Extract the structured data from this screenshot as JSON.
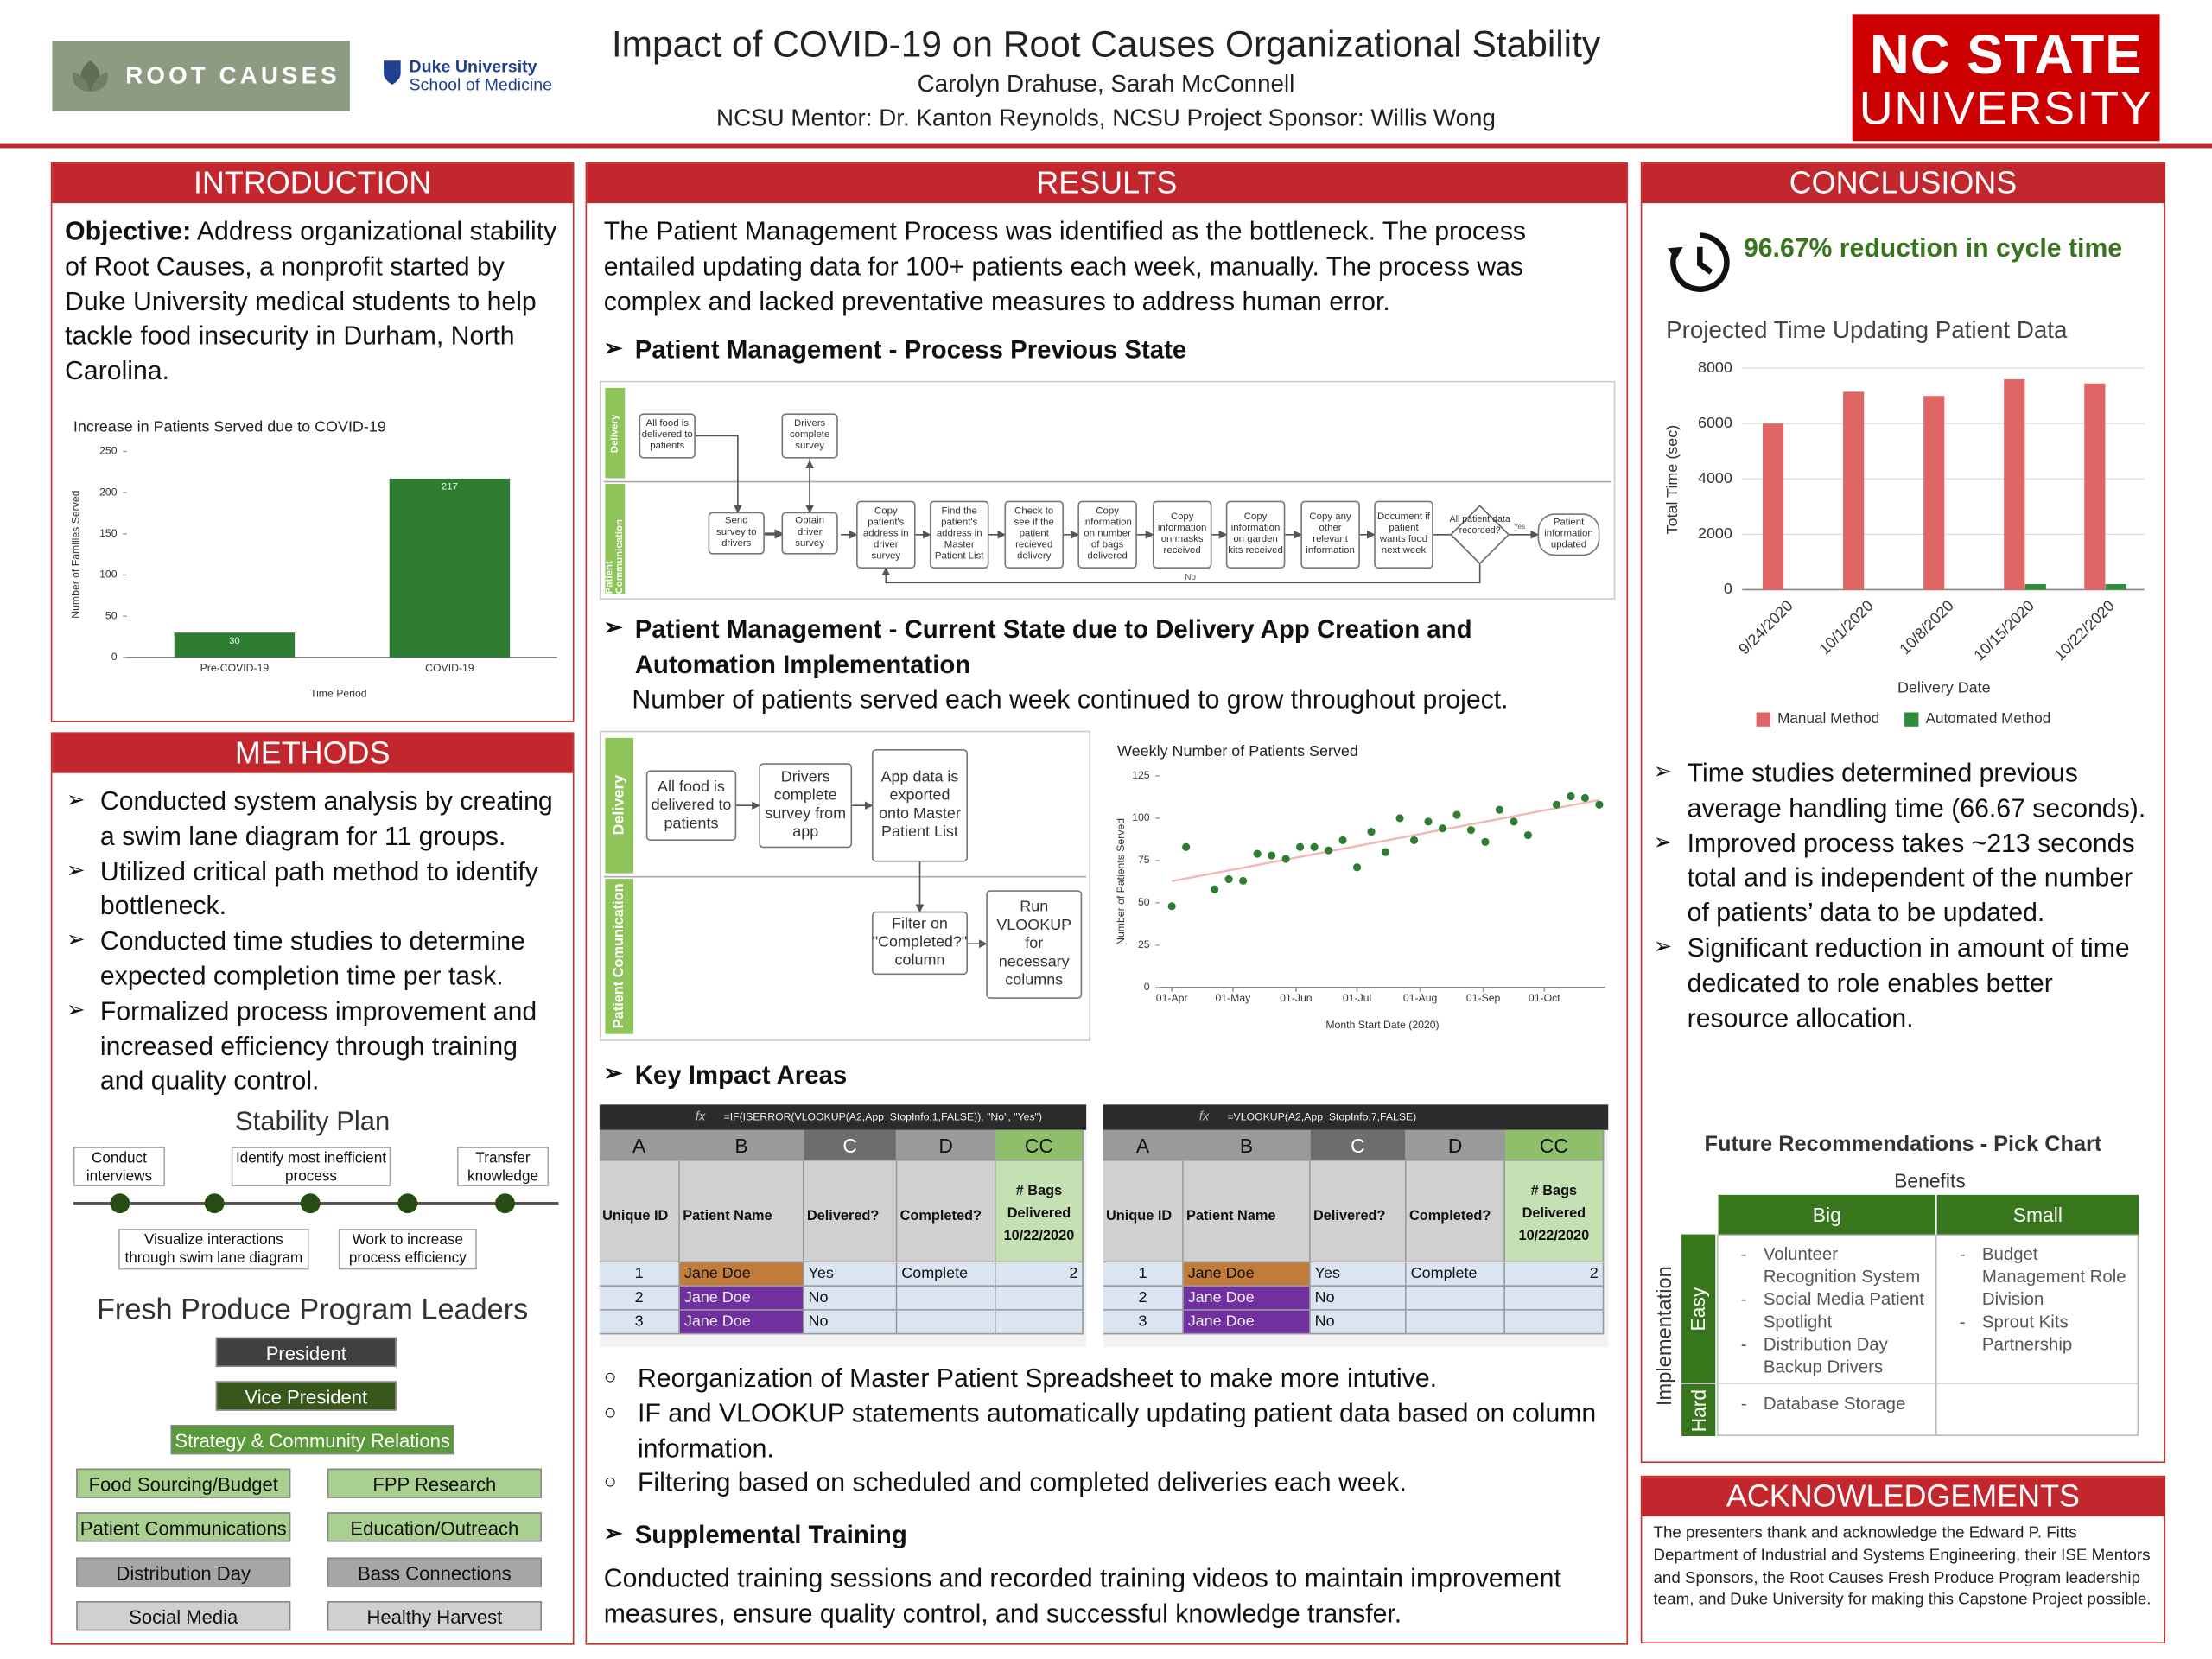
{
  "header": {
    "logo_left": "ROOT CAUSES",
    "duke_name": "Duke University",
    "duke_school": "School of Medicine",
    "title": "Impact of COVID-19 on Root Causes Organizational Stability",
    "authors": "Carolyn Drahuse, Sarah McConnell",
    "mentors": "NCSU Mentor: Dr. Kanton Reynolds, NCSU Project Sponsor: Willis Wong",
    "ncsu_top": "NC STATE",
    "ncsu_bottom": "UNIVERSITY"
  },
  "introduction": {
    "heading": "INTRODUCTION",
    "objective_label": "Objective:",
    "objective_text": "Address organizational stability of Root Causes, a nonprofit started by Duke University medical students to help tackle food insecurity in Durham, North Carolina."
  },
  "methods": {
    "heading": "METHODS",
    "bullets": [
      "Conducted system analysis by creating a swim lane diagram for 11 groups.",
      "Utilized critical path method to identify bottleneck.",
      "Conducted time studies to determine expected completion time per task.",
      "Formalized process improvement and increased efficiency through training and quality control."
    ],
    "stability_plan": {
      "title": "Stability Plan",
      "steps": [
        "Conduct interviews",
        "Visualize interactions through swim lane diagram",
        "Identify most inefficient process",
        "Work to increase process efficiency",
        "Transfer knowledge"
      ]
    },
    "leaders": {
      "title": "Fresh Produce Program Leaders",
      "president": "President",
      "vice_president": "Vice President",
      "strategy": "Strategy & Community Relations",
      "left": [
        "Food Sourcing/Budget",
        "Patient Communications",
        "Distribution Day",
        "Social Media"
      ],
      "right": [
        "FPP Research",
        "Education/Outreach",
        "Bass Connections",
        "Healthy Harvest"
      ]
    }
  },
  "results": {
    "heading": "RESULTS",
    "intro": "The Patient Management Process was identified as the bottleneck. The process entailed updating data for 100+ patients each week, manually. The process was complex and lacked preventative measures to address human error.",
    "previous_heading": "Patient Management - Process Previous State",
    "previous_diagram": {
      "lanes": [
        "Delivery",
        "Patient Communication"
      ],
      "delivery_steps": [
        "All food is delivered to patients",
        "Drivers complete survey"
      ],
      "communication_steps": [
        "Send survey to drivers",
        "Obtain driver survey",
        "Copy patient's address in driver survey",
        "Find the patient's address in Master Patient List",
        "Check to see if the patient recieved delivery",
        "Copy information on number of bags delivered",
        "Copy information on masks received",
        "Copy information on garden kits received",
        "Copy any other relevant information",
        "Document if patient wants food next week"
      ],
      "decision": "All patient data recorded?",
      "end": "Patient information updated",
      "yes": "Yes",
      "no": "No"
    },
    "current_heading": "Patient Management - Current State due to Delivery App Creation and Automation Implementation",
    "current_note": "Number of patients served each week continued to grow throughout project.",
    "current_diagram": {
      "lanes": [
        "Delivery",
        "Patient Comunication"
      ],
      "delivery_steps": [
        "All food is delivered to patients",
        "Drivers complete survey from app",
        "App data is exported onto Master Patient List"
      ],
      "communication_steps": [
        "Filter on \"Completed?\" column",
        "Run VLOOKUP for necessary columns"
      ]
    },
    "key_heading": "Key Impact Areas",
    "sheets": [
      {
        "formula_icon": "fx",
        "formula": "=IF(ISERROR(VLOOKUP(A2,App_StopInfo,1,FALSE)), \"No\", \"Yes\")",
        "columns": [
          "A",
          "B",
          "C",
          "D",
          "CC"
        ],
        "headers": [
          "Unique ID",
          "Patient Name",
          "Delivered?",
          "Completed?",
          "# Bags Delivered 10/22/2020"
        ],
        "rows": [
          {
            "id": 1,
            "name": "Jane Doe",
            "delivered": "Yes",
            "completed": "Complete",
            "bags": 2
          },
          {
            "id": 2,
            "name": "Jane Doe",
            "delivered": "No"
          },
          {
            "id": 3,
            "name": "Jane Doe",
            "delivered": "No"
          }
        ]
      },
      {
        "formula_icon": "fx",
        "formula": "=VLOOKUP(A2,App_StopInfo,7,FALSE)",
        "columns": [
          "A",
          "B",
          "C",
          "D",
          "CC"
        ],
        "headers": [
          "Unique ID",
          "Patient Name",
          "Delivered?",
          "Completed?",
          "# Bags Delivered 10/22/2020"
        ],
        "rows": [
          {
            "id": 1,
            "name": "Jane Doe",
            "delivered": "Yes",
            "completed": "Complete",
            "bags": 2
          },
          {
            "id": 2,
            "name": "Jane Doe",
            "delivered": "No"
          },
          {
            "id": 3,
            "name": "Jane Doe",
            "delivered": "No"
          }
        ]
      }
    ],
    "key_bullets": [
      "Reorganization of Master Patient Spreadsheet to make more intutive.",
      "IF and VLOOKUP statements automatically updating patient data based on column information.",
      "Filtering based on scheduled and completed deliveries each week."
    ],
    "training_heading": "Supplemental Training",
    "training_text": "Conducted training sessions and recorded training videos to maintain improvement measures, ensure quality control, and successful knowledge transfer."
  },
  "conclusions": {
    "heading": "CONCLUSIONS",
    "highlight": "96.67% reduction in cycle time",
    "bullets": [
      "Time studies determined previous average handling time (66.67 seconds).",
      "Improved process takes ~213 seconds total and is independent of the number of patients’ data to be updated.",
      "Significant reduction in amount of time dedicated to role enables better resource allocation."
    ],
    "pick_chart": {
      "title": "Future Recommendations - Pick Chart",
      "benefits": "Benefits",
      "big": "Big",
      "small": "Small",
      "implementation": "Implementation",
      "easy": "Easy",
      "hard": "Hard",
      "easy_big": [
        "Volunteer Recognition System",
        "Social Media Patient Spotlight",
        "Distribution Day Backup Drivers"
      ],
      "easy_small": [
        "Budget Management Role Division",
        "Sprout Kits Partnership"
      ],
      "hard_big": [
        "Database Storage"
      ]
    }
  },
  "acknowledgements": {
    "heading": "ACKNOWLEDGEMENTS",
    "text": "The presenters thank and acknowledge the Edward P. Fitts Department of Industrial and Systems Engineering, their ISE Mentors and Sponsors, the Root Causes Fresh Produce Program leadership team, and Duke University for making this Capstone Project possible."
  },
  "chart_data": [
    {
      "type": "bar",
      "title": "Increase in Patients Served due to COVID-19",
      "categories": [
        "Pre-COVID-19",
        "COVID-19"
      ],
      "values": [
        30,
        217
      ],
      "color": "#2e7d32",
      "data_labels": true,
      "x_label": "Time Period",
      "y_label": "Number of Families Served",
      "ylim": [
        0,
        250
      ],
      "yticks": [
        0,
        50,
        100,
        150,
        200,
        250
      ],
      "grid": false
    },
    {
      "type": "scatter",
      "title": "Weekly Number of Patients Served",
      "x": [
        "2020-04-01",
        "2020-04-08",
        "2020-04-22",
        "2020-04-29",
        "2020-05-06",
        "2020-05-13",
        "2020-05-20",
        "2020-05-27",
        "2020-06-03",
        "2020-06-10",
        "2020-06-17",
        "2020-06-24",
        "2020-07-01",
        "2020-07-08",
        "2020-07-15",
        "2020-07-22",
        "2020-07-29",
        "2020-08-05",
        "2020-08-12",
        "2020-08-19",
        "2020-08-26",
        "2020-09-02",
        "2020-09-09",
        "2020-09-16",
        "2020-09-23",
        "2020-10-07",
        "2020-10-14",
        "2020-10-21",
        "2020-10-28"
      ],
      "values": [
        48,
        83,
        58,
        64,
        63,
        79,
        78,
        76,
        83,
        83,
        81,
        87,
        71,
        92,
        80,
        100,
        87,
        98,
        94,
        102,
        93,
        86,
        105,
        98,
        90,
        108,
        113,
        112,
        108
      ],
      "color": "#2e7d32",
      "trendline": true,
      "trendline_color": "#f2b8b8",
      "x_label": "Month Start Date (2020)",
      "y_label": "Number of Patients Served",
      "xlim": [
        "2020-03-26",
        "2020-10-31"
      ],
      "xticks": [
        {
          "value": "2020-04-01",
          "label": "01-Apr"
        },
        {
          "value": "2020-05-01",
          "label": "01-May"
        },
        {
          "value": "2020-06-01",
          "label": "01-Jun"
        },
        {
          "value": "2020-07-01",
          "label": "01-Jul"
        },
        {
          "value": "2020-08-01",
          "label": "01-Aug"
        },
        {
          "value": "2020-09-01",
          "label": "01-Sep"
        },
        {
          "value": "2020-10-01",
          "label": "01-Oct"
        }
      ],
      "ylim": [
        0,
        125
      ],
      "yticks": [
        0,
        25,
        50,
        75,
        100,
        125
      ],
      "grid": false
    },
    {
      "type": "bar",
      "title": "Projected Time Updating Patient Data",
      "categories": [
        "9/24/2020",
        "10/1/2020",
        "10/8/2020",
        "10/15/2020",
        "10/22/2020"
      ],
      "series": [
        {
          "name": "Manual Method",
          "color": "#e06666",
          "values": [
            6000,
            7150,
            7000,
            7600,
            7450
          ]
        },
        {
          "name": "Automated Method",
          "color": "#2e8b3a",
          "values": [
            0,
            0,
            0,
            200,
            200
          ]
        }
      ],
      "x_label": "Delivery Date",
      "y_label": "Total Time (sec)",
      "ylim": [
        0,
        8000
      ],
      "yticks": [
        0,
        2000,
        4000,
        6000,
        8000
      ],
      "grid": true,
      "legend": "bottom"
    }
  ]
}
